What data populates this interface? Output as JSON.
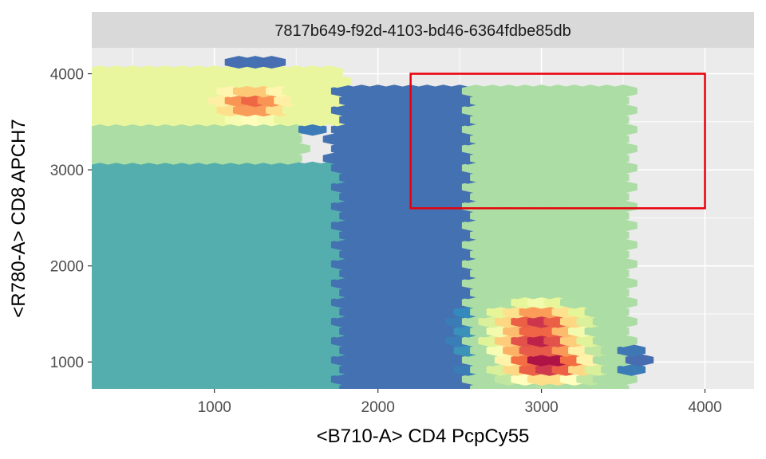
{
  "chart_data": {
    "type": "hexbin",
    "facet_title": "7817b649-f92d-4103-bd46-6364fdbe85db",
    "xlabel": "<B710-A> CD4 PcpCy55",
    "ylabel": "<R780-A> CD8 APCH7",
    "xlim": [
      250,
      4300
    ],
    "ylim": [
      720,
      4270
    ],
    "x_ticks": [
      1000,
      2000,
      3000,
      4000
    ],
    "x_tick_labels": [
      "1000",
      "2000",
      "3000",
      "4000"
    ],
    "y_ticks": [
      1000,
      2000,
      3000,
      4000
    ],
    "y_tick_labels": [
      "1000",
      "2000",
      "3000",
      "4000"
    ],
    "grid": true,
    "colormap": "Spectral (reversed): low density purple, high density dark red",
    "gate": {
      "shape": "rectangle",
      "color": "#e8000b",
      "x_range": [
        2200,
        4000
      ],
      "y_range": [
        2600,
        4000
      ]
    },
    "density_regions": [
      {
        "x": [
          250,
          1750
        ],
        "y": [
          3500,
          4100
        ],
        "density": 0.55
      },
      {
        "x": [
          250,
          1500
        ],
        "y": [
          3100,
          3500
        ],
        "density": 0.4
      },
      {
        "x": [
          250,
          1750
        ],
        "y": [
          720,
          3100
        ],
        "density": 0.22
      },
      {
        "x": [
          1750,
          2600
        ],
        "y": [
          720,
          3900
        ],
        "density": 0.08
      },
      {
        "x": [
          2600,
          3500
        ],
        "y": [
          720,
          3900
        ],
        "density": 0.4
      },
      {
        "x": [
          3500,
          3900
        ],
        "y": [
          720,
          4100
        ],
        "density": 0.06
      }
    ],
    "density_peaks": [
      {
        "x": 1250,
        "y": 3700,
        "density": 0.82
      },
      {
        "x": 3000,
        "y": 1400,
        "density": 0.92
      },
      {
        "x": 3050,
        "y": 1000,
        "density": 1.0
      },
      {
        "x": 3000,
        "y": 1200,
        "density": 0.95
      }
    ]
  }
}
